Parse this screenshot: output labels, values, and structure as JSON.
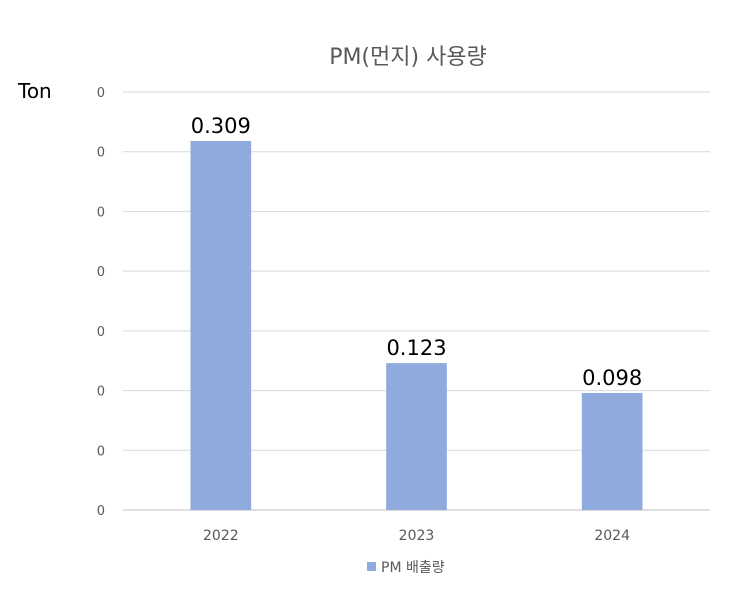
{
  "chart_data": {
    "type": "bar",
    "title": "PM(먼지) 사용량",
    "unit_label": "Ton",
    "categories": [
      "2022",
      "2023",
      "2024"
    ],
    "series": [
      {
        "name": "PM 배출량",
        "values": [
          0.309,
          0.123,
          0.098
        ],
        "color": "#8faadc"
      }
    ],
    "data_labels": [
      "0.309",
      "0.123",
      "0.098"
    ],
    "y_tick_labels": [
      "0",
      "0",
      "0",
      "0",
      "0",
      "0",
      "0",
      "0"
    ],
    "ylim": [
      0,
      0.35
    ],
    "grid": true,
    "legend_position": "bottom"
  }
}
